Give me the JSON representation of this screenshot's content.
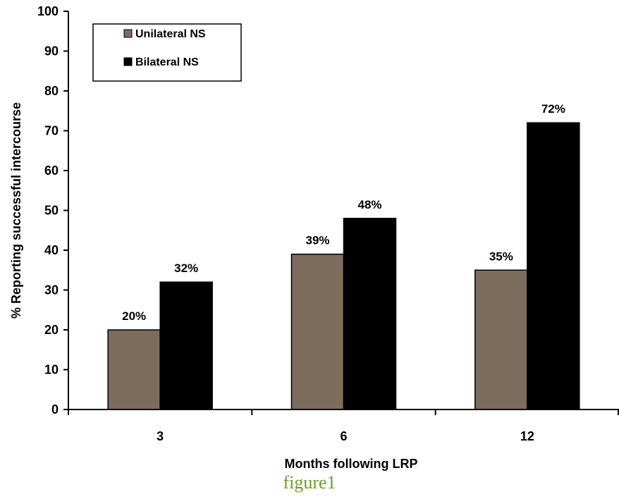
{
  "caption": "figure1",
  "colors": {
    "unilateral": "#7b6c5c",
    "bilateral": "#000000",
    "axis": "#000000"
  },
  "chart_data": {
    "type": "bar",
    "title": "",
    "xlabel": "Months following LRP",
    "ylabel": "% Reporting successful intercourse",
    "categories": [
      "3",
      "6",
      "12"
    ],
    "ylim": [
      0,
      100
    ],
    "yticks": [
      0,
      10,
      20,
      30,
      40,
      50,
      60,
      70,
      80,
      90,
      100
    ],
    "grid": false,
    "legend": "top-left",
    "series": [
      {
        "name": "Unilateral NS",
        "values": [
          20,
          39,
          35
        ],
        "labels": [
          "20%",
          "39%",
          "35%"
        ]
      },
      {
        "name": "Bilateral NS",
        "values": [
          32,
          48,
          72
        ],
        "labels": [
          "32%",
          "48%",
          "72%"
        ]
      }
    ]
  }
}
